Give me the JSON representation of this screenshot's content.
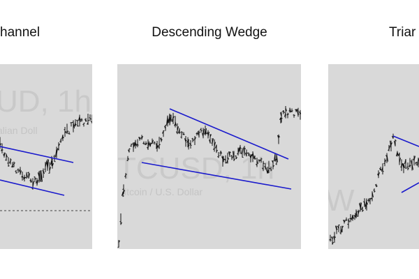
{
  "panels": [
    {
      "title": "hannel",
      "watermark_symbol": "UD, 1h",
      "watermark_name": "alian Doll"
    },
    {
      "title": "Descending Wedge",
      "watermark_symbol": "TCUSD, 1h",
      "watermark_name": "itcoin / U.S. Dollar"
    },
    {
      "title": "Triar",
      "watermark_symbol": "W"
    }
  ]
}
